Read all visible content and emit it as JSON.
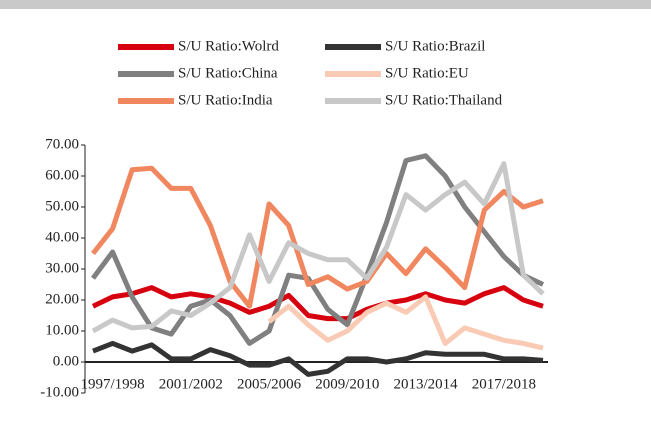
{
  "chart_data": {
    "type": "line",
    "categories": [
      null,
      "1997/1998",
      null,
      null,
      null,
      "2001/2002",
      null,
      null,
      null,
      "2005/2006",
      null,
      null,
      null,
      "2009/2010",
      null,
      null,
      null,
      "2013/2014",
      null,
      null,
      null,
      "2017/2018",
      null,
      null
    ],
    "series": [
      {
        "name": "S/U Ratio:Wolrd",
        "color": "#d7000f",
        "values": [
          18,
          21,
          22,
          24,
          21,
          22,
          21,
          19,
          16,
          18,
          21.5,
          15,
          14,
          14,
          17,
          19,
          20,
          22,
          20,
          19,
          22,
          24,
          20,
          18
        ]
      },
      {
        "name": "S/U Ratio:Brazil",
        "color": "#333333",
        "values": [
          3.5,
          6,
          3.5,
          5.5,
          1,
          1,
          4,
          2,
          -1,
          -1,
          1,
          -4,
          -3,
          1,
          1,
          0,
          1,
          3,
          2.5,
          2.5,
          2.5,
          1,
          1,
          0.5
        ]
      },
      {
        "name": "S/U Ratio:China",
        "color": "#808080",
        "values": [
          27,
          35.5,
          21,
          11,
          9,
          18,
          20,
          15,
          6,
          10,
          28,
          27,
          17,
          12,
          28,
          45,
          65,
          66.5,
          60,
          50,
          42,
          34,
          28,
          25
        ]
      },
      {
        "name": "S/U Ratio:EU",
        "color": "#f9cbb4",
        "values": [
          null,
          null,
          null,
          null,
          null,
          null,
          null,
          null,
          null,
          13,
          18,
          12,
          7,
          10,
          16,
          19,
          16,
          21,
          6,
          11,
          9,
          7,
          6,
          4.5
        ]
      },
      {
        "name": "S/U Ratio:India",
        "color": "#f0875f",
        "values": [
          35,
          43,
          62,
          62.5,
          56,
          56,
          44,
          26,
          18,
          51,
          44,
          25,
          27.5,
          23.5,
          26,
          35,
          28.5,
          36.5,
          30.5,
          24,
          49,
          55,
          50,
          52
        ]
      },
      {
        "name": "S/U Ratio:Thailand",
        "color": "#c8c8c8",
        "values": [
          10,
          13.5,
          11,
          11.5,
          16.5,
          15,
          19,
          24,
          41,
          26,
          38.5,
          35,
          33,
          33,
          27,
          37,
          54,
          49,
          54,
          58,
          51,
          64,
          28,
          22
        ]
      }
    ],
    "ylim": [
      -10,
      70
    ],
    "yticks": [
      {
        "value": -10,
        "label": "-10.00"
      },
      {
        "value": 0,
        "label": "0.00"
      },
      {
        "value": 10,
        "label": "10.00"
      },
      {
        "value": 20,
        "label": "20.00"
      },
      {
        "value": 30,
        "label": "30.00"
      },
      {
        "value": 40,
        "label": "40.00"
      },
      {
        "value": 50,
        "label": "50.00"
      },
      {
        "value": 60,
        "label": "60.00"
      },
      {
        "value": 70,
        "label": "70.00"
      }
    ],
    "grid": false
  }
}
